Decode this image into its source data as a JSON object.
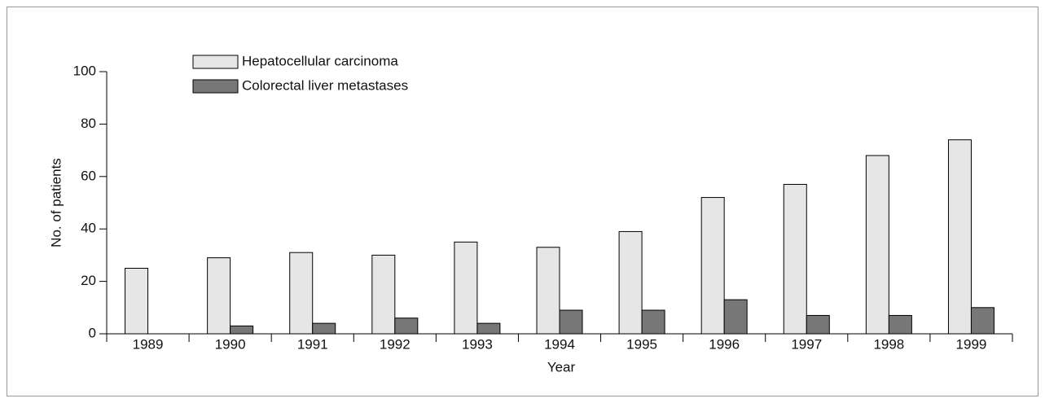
{
  "chart_data": {
    "type": "bar",
    "x_label": "Year",
    "y_label": "No. of patients",
    "categories": [
      "1989",
      "1990",
      "1991",
      "1992",
      "1993",
      "1994",
      "1995",
      "1996",
      "1997",
      "1998",
      "1999"
    ],
    "series": [
      {
        "name": "Hepatocellular carcinoma",
        "color": "#e6e6e6",
        "values": [
          25,
          29,
          31,
          30,
          35,
          33,
          39,
          52,
          57,
          68,
          74
        ]
      },
      {
        "name": "Colorectal liver metastases",
        "color": "#777777",
        "values": [
          0,
          3,
          4,
          6,
          4,
          9,
          9,
          13,
          7,
          7,
          10
        ]
      }
    ],
    "ylim": [
      0,
      100
    ],
    "yticks": [
      0,
      20,
      40,
      60,
      80,
      100
    ],
    "grid": false
  }
}
